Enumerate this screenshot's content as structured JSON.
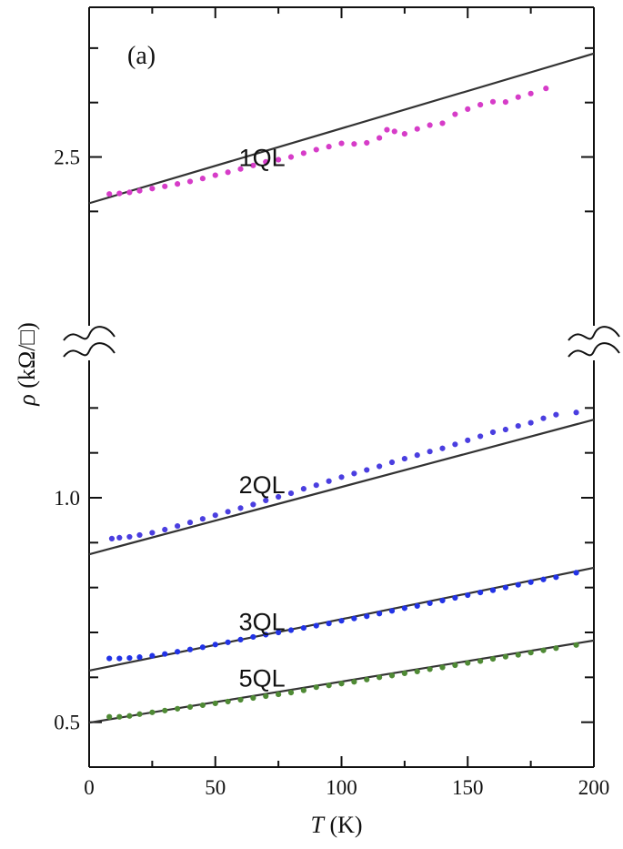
{
  "chart_data": {
    "type": "scatter",
    "panel_label": "(a)",
    "xlabel": {
      "symbol": "T",
      "unit": " (K)"
    },
    "ylabel": {
      "symbol": "ρ",
      "unit": " (kΩ/□)"
    },
    "xlim": [
      0,
      200
    ],
    "x_ticks": [
      "0",
      "50",
      "100",
      "150",
      "200"
    ],
    "y_tick_labels": [
      {
        "panel": "upper",
        "value": 2.5,
        "label": "2.5"
      },
      {
        "panel": "lower",
        "value": 1.0,
        "label": "1.0"
      },
      {
        "panel": "lower",
        "value": 0.5,
        "label": "0.5"
      }
    ],
    "axis_break": true,
    "panels": {
      "upper": {
        "ylim": [
          1.9,
          3.05
        ],
        "minor_ticks": [
          2.3,
          2.5,
          2.7,
          2.9
        ]
      },
      "lower": {
        "ylim": [
          0.4,
          1.3
        ],
        "minor_ticks": [
          0.5,
          0.6,
          0.7,
          0.8,
          0.9,
          1.0,
          1.1,
          1.2
        ]
      }
    },
    "series": [
      {
        "name": "1QL",
        "panel": "upper",
        "color": "#d63cc8",
        "x": [
          8,
          12,
          16,
          20,
          25,
          30,
          35,
          40,
          45,
          50,
          55,
          60,
          65,
          70,
          75,
          80,
          85,
          90,
          95,
          100,
          105,
          110,
          115,
          118,
          121,
          125,
          130,
          135,
          140,
          145,
          150,
          155,
          160,
          165,
          170,
          175,
          181
        ],
        "y": [
          2.364,
          2.366,
          2.37,
          2.376,
          2.384,
          2.392,
          2.401,
          2.41,
          2.421,
          2.433,
          2.444,
          2.456,
          2.469,
          2.482,
          2.49,
          2.5,
          2.514,
          2.527,
          2.538,
          2.55,
          2.548,
          2.552,
          2.57,
          2.6,
          2.594,
          2.585,
          2.603,
          2.617,
          2.624,
          2.657,
          2.676,
          2.692,
          2.703,
          2.702,
          2.72,
          2.733,
          2.752
        ]
      },
      {
        "name": "2QL",
        "panel": "lower",
        "color": "#4a3ee0",
        "x": [
          9,
          12,
          16,
          20,
          25,
          30,
          35,
          40,
          45,
          50,
          55,
          60,
          65,
          70,
          75,
          80,
          85,
          90,
          95,
          100,
          105,
          110,
          115,
          120,
          125,
          130,
          135,
          140,
          145,
          150,
          155,
          160,
          165,
          170,
          175,
          180,
          185,
          193
        ],
        "y": [
          0.909,
          0.911,
          0.913,
          0.917,
          0.922,
          0.929,
          0.937,
          0.945,
          0.953,
          0.961,
          0.969,
          0.977,
          0.985,
          0.994,
          1.002,
          1.01,
          1.02,
          1.028,
          1.037,
          1.046,
          1.054,
          1.062,
          1.07,
          1.079,
          1.087,
          1.095,
          1.103,
          1.11,
          1.119,
          1.128,
          1.137,
          1.146,
          1.152,
          1.16,
          1.167,
          1.177,
          1.185,
          1.19
        ]
      },
      {
        "name": "3QL",
        "panel": "lower",
        "color": "#2233e6",
        "x": [
          8,
          12,
          16,
          20,
          25,
          30,
          35,
          40,
          45,
          50,
          55,
          60,
          65,
          70,
          75,
          80,
          85,
          90,
          95,
          100,
          105,
          110,
          115,
          120,
          125,
          130,
          135,
          140,
          145,
          150,
          155,
          160,
          165,
          170,
          175,
          180,
          185,
          193
        ],
        "y": [
          0.642,
          0.642,
          0.643,
          0.645,
          0.648,
          0.652,
          0.657,
          0.662,
          0.667,
          0.673,
          0.678,
          0.684,
          0.69,
          0.695,
          0.7,
          0.705,
          0.71,
          0.715,
          0.72,
          0.726,
          0.731,
          0.736,
          0.742,
          0.748,
          0.754,
          0.759,
          0.765,
          0.771,
          0.777,
          0.783,
          0.789,
          0.794,
          0.8,
          0.806,
          0.812,
          0.818,
          0.823,
          0.833
        ]
      },
      {
        "name": "5QL",
        "panel": "lower",
        "color": "#4f8a35",
        "x": [
          8,
          12,
          16,
          20,
          25,
          30,
          35,
          40,
          45,
          50,
          55,
          60,
          65,
          70,
          75,
          80,
          85,
          90,
          95,
          100,
          105,
          110,
          115,
          120,
          125,
          130,
          135,
          140,
          145,
          150,
          155,
          160,
          165,
          170,
          175,
          180,
          185,
          193
        ],
        "y": [
          0.512,
          0.512,
          0.514,
          0.518,
          0.522,
          0.526,
          0.53,
          0.534,
          0.538,
          0.542,
          0.546,
          0.55,
          0.554,
          0.558,
          0.562,
          0.566,
          0.571,
          0.578,
          0.582,
          0.586,
          0.59,
          0.595,
          0.6,
          0.604,
          0.609,
          0.613,
          0.618,
          0.622,
          0.627,
          0.632,
          0.636,
          0.641,
          0.646,
          0.65,
          0.655,
          0.66,
          0.665,
          0.672
        ]
      }
    ],
    "fits": [
      {
        "series": "1QL",
        "panel": "upper",
        "x": [
          0,
          200
        ],
        "y": [
          2.33,
          2.88
        ]
      },
      {
        "series": "2QL",
        "panel": "lower",
        "x": [
          0,
          200
        ],
        "y": [
          0.874,
          1.174
        ]
      },
      {
        "series": "3QL",
        "panel": "lower",
        "x": [
          0,
          200
        ],
        "y": [
          0.615,
          0.844
        ]
      },
      {
        "series": "5QL",
        "panel": "lower",
        "x": [
          0,
          200
        ],
        "y": [
          0.499,
          0.682
        ]
      }
    ],
    "series_labels": [
      {
        "text": "1QL",
        "panel": "upper",
        "x": 55,
        "y": 2.5
      },
      {
        "text": "2QL",
        "panel": "lower",
        "x": 55,
        "y": 1.03
      },
      {
        "text": "3QL",
        "panel": "lower",
        "x": 55,
        "y": 0.725
      },
      {
        "text": "5QL",
        "panel": "lower",
        "x": 55,
        "y": 0.6
      }
    ]
  }
}
